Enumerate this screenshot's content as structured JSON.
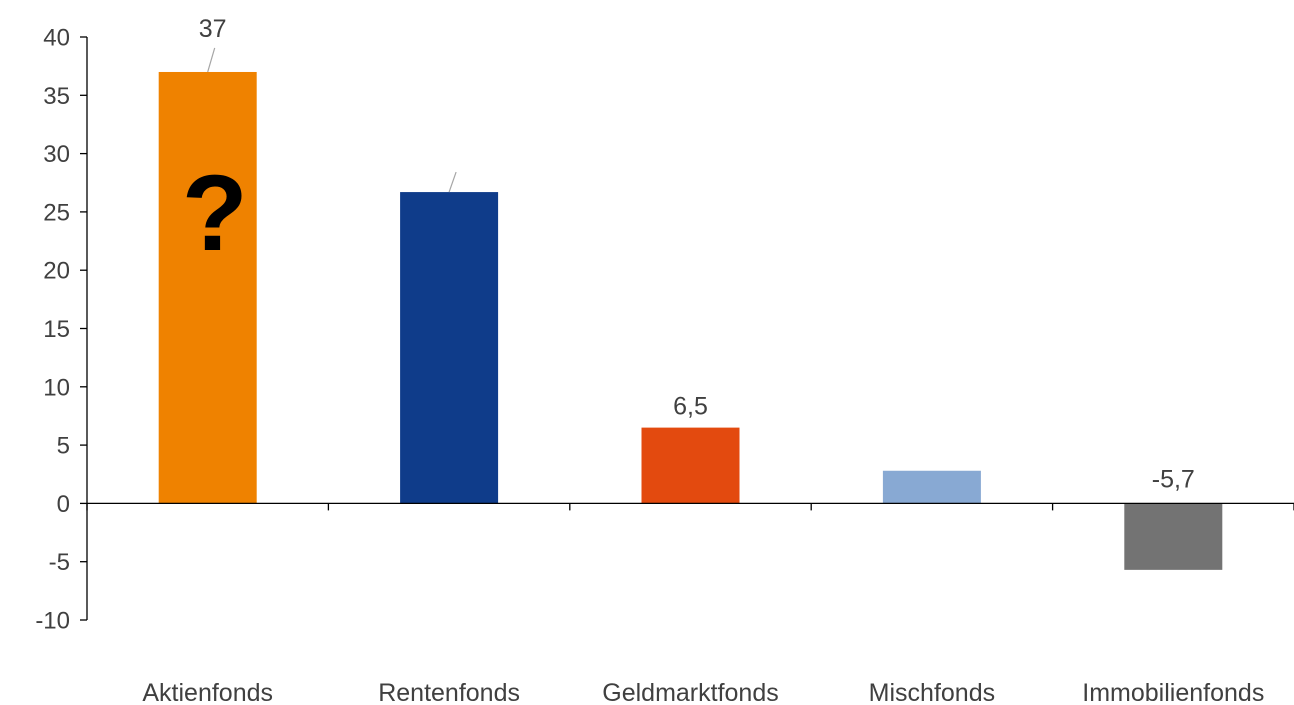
{
  "chart_data": {
    "type": "bar",
    "title": "",
    "xlabel": "",
    "ylabel": "",
    "categories": [
      "Aktienfonds",
      "Rentenfonds",
      "Geldmarktfonds",
      "Mischfonds",
      "Immobilienfonds"
    ],
    "values": [
      37,
      26.7,
      6.5,
      2.8,
      -5.7
    ],
    "data_labels": [
      "37",
      "",
      "6,5",
      "",
      "-5,7"
    ],
    "colors": [
      "#ef8200",
      "#0f3c8a",
      "#e34a0f",
      "#88a9d3",
      "#737373"
    ],
    "ylim": [
      -10,
      40
    ],
    "yticks": [
      40,
      35,
      30,
      25,
      20,
      15,
      10,
      5,
      0,
      -5,
      -10
    ],
    "grid": false,
    "legend": "none",
    "overlay_text": "?"
  }
}
